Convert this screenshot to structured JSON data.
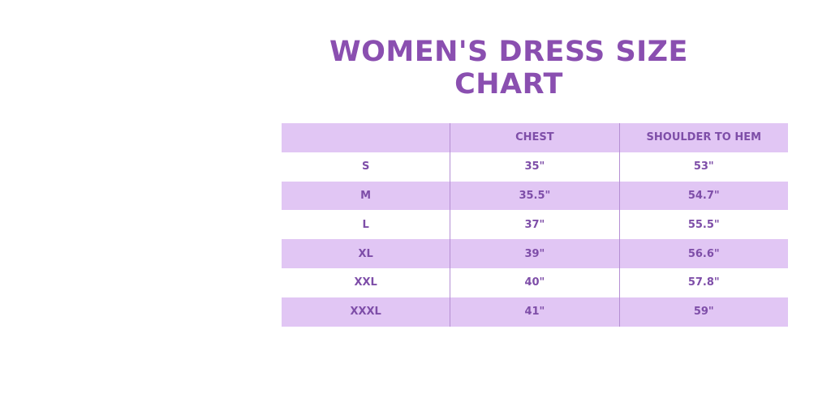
{
  "title": "WOMEN'S DRESS SIZE CHART",
  "table": {
    "headers": [
      "",
      "CHEST",
      "SHOULDER TO HEM"
    ],
    "rows": [
      [
        "S",
        "35\"",
        "53\""
      ],
      [
        "M",
        "35.5\"",
        "54.7\""
      ],
      [
        "L",
        "37\"",
        "55.5\""
      ],
      [
        "XL",
        "39\"",
        "56.6\""
      ],
      [
        "XXL",
        "40\"",
        "57.8\""
      ],
      [
        "XXXL",
        "41\"",
        "59\""
      ]
    ]
  },
  "colors": {
    "accent": "#8a4fb0",
    "band": "#e1c6f4"
  }
}
